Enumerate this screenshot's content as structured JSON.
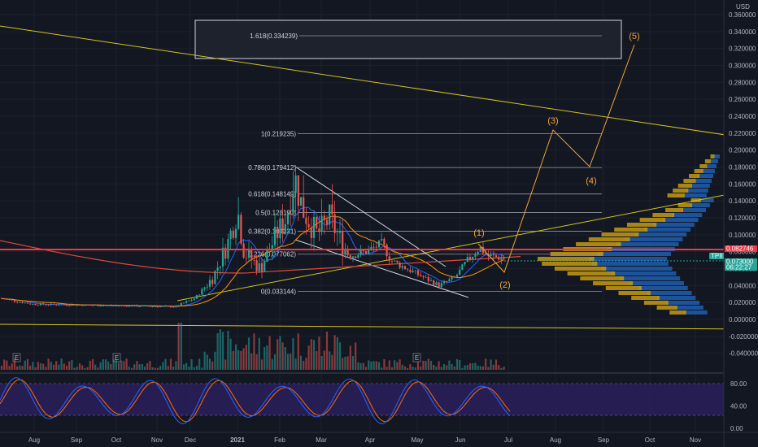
{
  "chart_data": {
    "type": "candlestick",
    "currency": "USD",
    "price_axis": {
      "ticks": [
        "0.360000",
        "0.340000",
        "0.320000",
        "0.300000",
        "0.280000",
        "0.260000",
        "0.240000",
        "0.220000",
        "0.200000",
        "0.180000",
        "0.160000",
        "0.140000",
        "0.120000",
        "0.100000",
        "0.080000",
        "0.060000",
        "0.040000",
        "0.020000",
        "0.000000",
        "-0.020000",
        "-0.040000"
      ],
      "range": [
        -0.045,
        0.36
      ]
    },
    "oscillator_axis": {
      "ticks": [
        "80.00",
        "40.00",
        "0.00"
      ],
      "range": [
        0,
        100
      ],
      "bands": [
        20,
        80
      ]
    },
    "time_axis": {
      "labels": [
        "Aug",
        "Sep",
        "Oct",
        "Nov",
        "Dec",
        "2021",
        "Feb",
        "Mar",
        "Apr",
        "May",
        "Jun",
        "Jul",
        "Aug",
        "Sep",
        "Oct",
        "Nov"
      ],
      "label_x": [
        42,
        94,
        143,
        193,
        234,
        292,
        344,
        395,
        455,
        513,
        566,
        625,
        683,
        742,
        799,
        855
      ]
    },
    "fib_levels": [
      {
        "label": "1.618(0.334239)",
        "price": 0.334239
      },
      {
        "label": "1(0.219235)",
        "price": 0.219235
      },
      {
        "label": "0.786(0.179412)",
        "price": 0.179412
      },
      {
        "label": "0.618(0.148149)",
        "price": 0.148149
      },
      {
        "label": "0.5(0.126190)",
        "price": 0.12619
      },
      {
        "label": "0.382(0.104231)",
        "price": 0.104231
      },
      {
        "label": "0.236(0.077062)",
        "price": 0.077062
      },
      {
        "label": "0(0.033144)",
        "price": 0.033144
      }
    ],
    "wave_labels": [
      "(1)",
      "(2)",
      "(3)",
      "(4)",
      "(5)"
    ],
    "wave_path": [
      {
        "date": "Jun 2021",
        "price": 0.09
      },
      {
        "date": "Jul 2021",
        "price": 0.055
      },
      {
        "date": "Aug 2021",
        "price": 0.22
      },
      {
        "date": "Sep 2021",
        "price": 0.18
      },
      {
        "date": "Oct 2021",
        "price": 0.33
      }
    ],
    "price_tags": [
      {
        "label": "0.082746",
        "price": 0.082746,
        "color": "#f23645"
      },
      {
        "label": "TPII",
        "price": 0.073,
        "color": "#26a69a"
      },
      {
        "label": "0.073000",
        "price": 0.073,
        "color": "#26a69a"
      },
      {
        "label": "06:22:27",
        "price": 0.073,
        "color": "#26a69a"
      }
    ],
    "event_markers": [
      "E",
      "E",
      "E"
    ],
    "colors": {
      "up": "#26a69a",
      "down": "#ef5350",
      "resistance": "#f23645",
      "trendline": "#d4c31f",
      "wave": "#f2a533",
      "stoch_k": "#2962ff",
      "stoch_d": "#ff6d00",
      "stoch_band": "#2a1f5c"
    }
  }
}
